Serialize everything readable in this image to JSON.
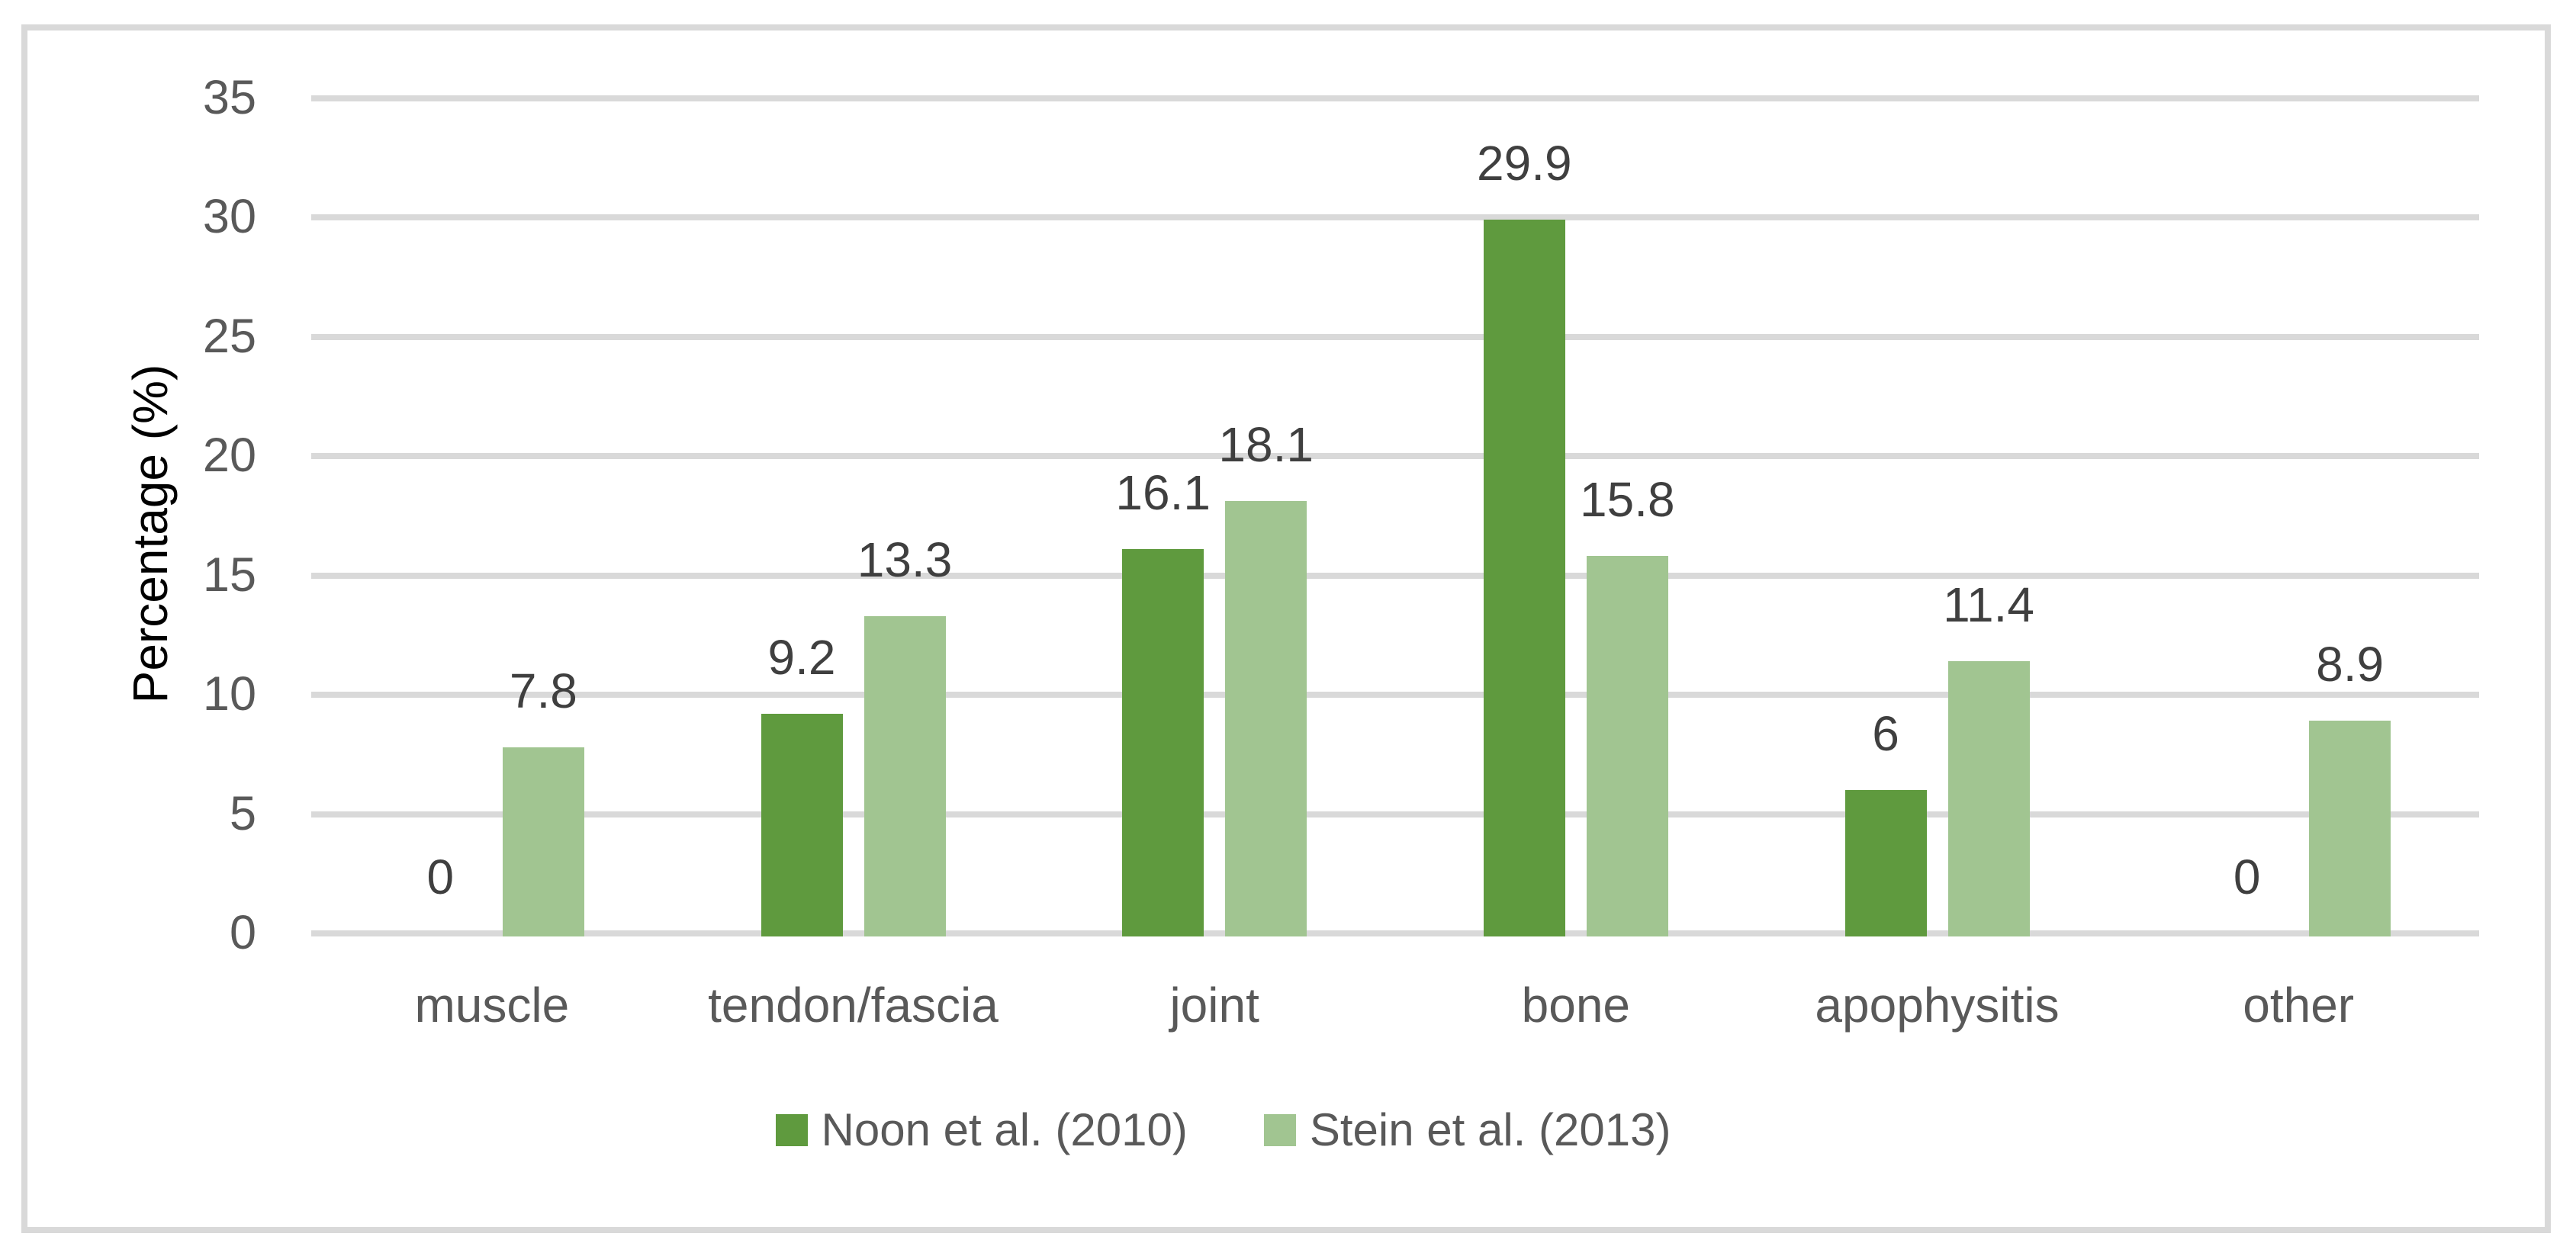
{
  "chart_data": {
    "type": "bar",
    "title": "",
    "ylabel": "Percentage (%)",
    "xlabel": "",
    "categories": [
      "muscle",
      "tendon/fascia",
      "joint",
      "bone",
      "apophysitis",
      "other"
    ],
    "series": [
      {
        "name": "Noon et al. (2010)",
        "color": "#5f9a3e",
        "values": [
          0,
          9.2,
          16.1,
          29.9,
          6,
          0
        ]
      },
      {
        "name": "Stein et al. (2013)",
        "color": "#a1c591",
        "values": [
          7.8,
          13.3,
          18.1,
          15.8,
          11.4,
          8.9
        ]
      }
    ],
    "data_labels": [
      "0",
      "9.2",
      "16.1",
      "29.9",
      "6",
      "0",
      "7.8",
      "13.3",
      "18.1",
      "15.8",
      "11.4",
      "8.9"
    ],
    "ylim": [
      0,
      35
    ],
    "yticks": [
      0,
      5,
      10,
      15,
      20,
      25,
      30,
      35
    ],
    "grid": true,
    "legend_position": "bottom",
    "colors": {
      "background": "#ffffff",
      "frame_border": "#d9d9d9",
      "gridline": "#d9d9d9",
      "axis_text": "#595959",
      "data_label_text": "#3f3f3f"
    }
  }
}
